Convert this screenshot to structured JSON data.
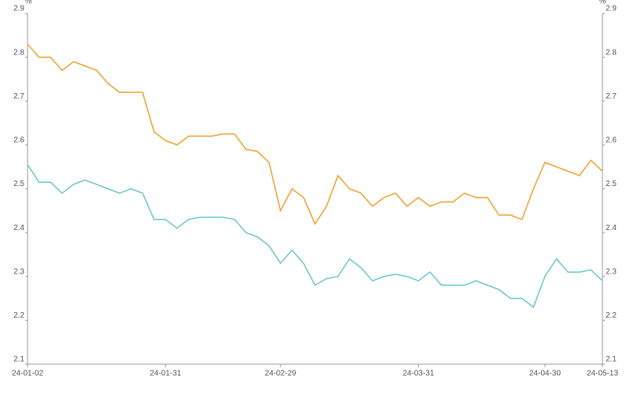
{
  "chart_data": {
    "type": "line",
    "y_unit": "%",
    "categories": [
      "24-01-02",
      null,
      null,
      null,
      null,
      null,
      null,
      null,
      null,
      null,
      null,
      null,
      "24-01-31",
      null,
      null,
      null,
      null,
      null,
      null,
      null,
      null,
      null,
      "24-02-29",
      null,
      null,
      null,
      null,
      null,
      null,
      null,
      null,
      null,
      null,
      null,
      "24-03-31",
      null,
      null,
      null,
      null,
      null,
      null,
      null,
      null,
      null,
      null,
      "24-04-30",
      null,
      null,
      null,
      null,
      "24-05-13"
    ],
    "series": [
      {
        "color": "#f0a030",
        "values": [
          2.83,
          2.8,
          2.8,
          2.77,
          2.79,
          2.78,
          2.77,
          2.74,
          2.72,
          2.72,
          2.72,
          2.63,
          2.61,
          2.6,
          2.62,
          2.62,
          2.62,
          2.625,
          2.625,
          2.59,
          2.585,
          2.56,
          2.45,
          2.5,
          2.48,
          2.42,
          2.46,
          2.53,
          2.5,
          2.49,
          2.46,
          2.48,
          2.49,
          2.46,
          2.48,
          2.46,
          2.47,
          2.47,
          2.49,
          2.48,
          2.48,
          2.44,
          2.44,
          2.43,
          2.5,
          2.56,
          2.55,
          2.54,
          2.53,
          2.565,
          2.54
        ]
      },
      {
        "color": "#6cc5c8",
        "values": [
          2.555,
          2.515,
          2.515,
          2.49,
          2.51,
          2.52,
          2.51,
          2.5,
          2.49,
          2.5,
          2.49,
          2.43,
          2.43,
          2.41,
          2.43,
          2.435,
          2.435,
          2.435,
          2.43,
          2.4,
          2.39,
          2.37,
          2.33,
          2.36,
          2.33,
          2.28,
          2.295,
          2.3,
          2.34,
          2.32,
          2.29,
          2.3,
          2.305,
          2.3,
          2.29,
          2.31,
          2.28,
          2.28,
          2.28,
          2.29,
          2.28,
          2.27,
          2.25,
          2.25,
          2.23,
          2.3,
          2.34,
          2.31,
          2.31,
          2.315,
          2.29
        ]
      }
    ],
    "ylim": [
      2.1,
      2.9
    ],
    "yticks": [
      2.1,
      2.2,
      2.3,
      2.4,
      2.5,
      2.6,
      2.7,
      2.8,
      2.9
    ],
    "y2lim": [
      2.1,
      2.9
    ],
    "y2ticks": [
      2.1,
      2.2,
      2.3,
      2.4,
      2.5,
      2.6,
      2.7,
      2.8,
      2.9
    ],
    "grid": false
  }
}
